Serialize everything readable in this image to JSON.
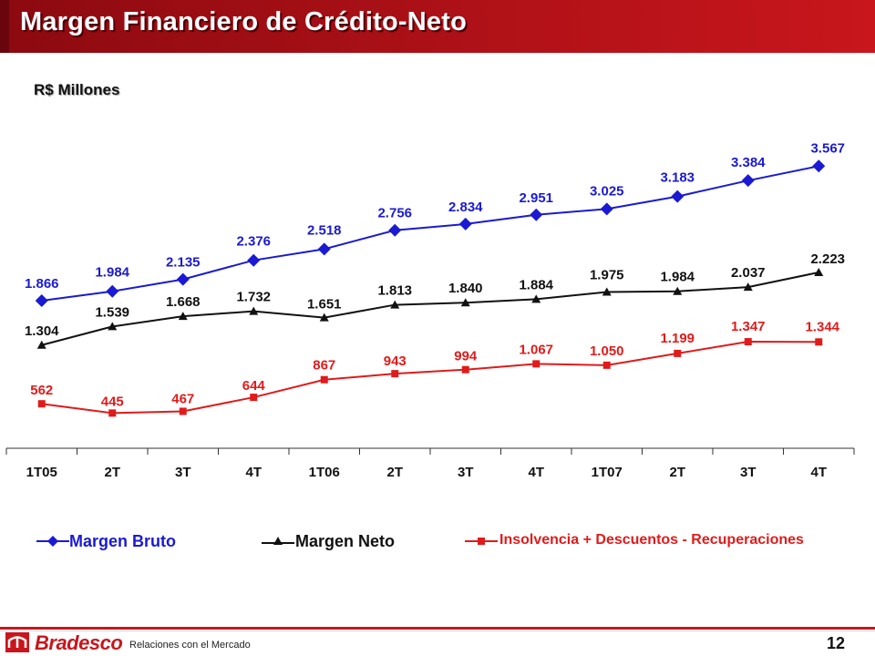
{
  "header": {
    "title": "Margen Financiero de Crédito-Neto"
  },
  "subtitle": "R$ Millones",
  "chart_data": {
    "type": "line",
    "categories": [
      "1T05",
      "2T",
      "3T",
      "4T",
      "1T06",
      "2T",
      "3T",
      "4T",
      "1T07",
      "2T",
      "3T",
      "4T"
    ],
    "series": [
      {
        "name": "Margen Bruto",
        "color": "#1a1ad2",
        "marker": "diamond",
        "values": [
          1866,
          1984,
          2135,
          2376,
          2518,
          2756,
          2834,
          2951,
          3025,
          3183,
          3384,
          3567
        ],
        "labels": [
          "1.866",
          "1.984",
          "2.135",
          "2.376",
          "2.518",
          "2.756",
          "2.834",
          "2.951",
          "3.025",
          "3.183",
          "3.384",
          "3.567"
        ]
      },
      {
        "name": "Margen Neto",
        "color": "#111111",
        "marker": "triangle",
        "values": [
          1304,
          1539,
          1668,
          1732,
          1651,
          1813,
          1840,
          1884,
          1975,
          1984,
          2037,
          2223
        ],
        "labels": [
          "1.304",
          "1.539",
          "1.668",
          "1.732",
          "1.651",
          "1.813",
          "1.840",
          "1.884",
          "1.975",
          "1.984",
          "2.037",
          "2.223"
        ]
      },
      {
        "name": "Insolvencia + Descuentos - Recuperaciones",
        "color": "#e01b1b",
        "marker": "square",
        "values": [
          562,
          445,
          467,
          644,
          867,
          943,
          994,
          1067,
          1050,
          1199,
          1347,
          1344
        ],
        "labels": [
          "562",
          "445",
          "467",
          "644",
          "867",
          "943",
          "994",
          "1.067",
          "1.050",
          "1.199",
          "1.347",
          "1.344"
        ]
      }
    ],
    "ylim": [
      0,
      4100
    ],
    "grid": false,
    "legend": "bottom"
  },
  "legend": {
    "bruto": "Margen Bruto",
    "neto": "Margen Neto",
    "insolvencia": "Insolvencia + Descuentos - Recuperaciones"
  },
  "footer": {
    "brand": "Bradesco",
    "text": "Relaciones con el Mercado",
    "page": "12"
  }
}
